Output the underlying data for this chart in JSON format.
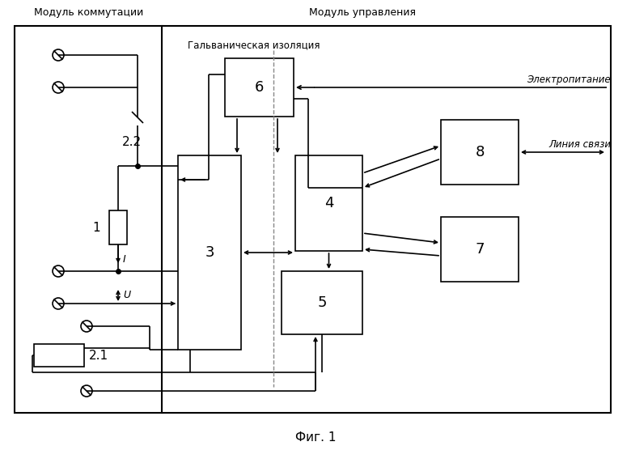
{
  "title_left": "Модуль коммутации",
  "title_right": "Модуль управления",
  "galvanic_label": "Гальваническая изоляция",
  "label_elektro": "Электропитание",
  "label_linia": "Линия связи",
  "caption": "Фиг. 1",
  "bg_color": "#ffffff",
  "line_color": "#000000",
  "fig_width": 7.8,
  "fig_height": 5.72
}
